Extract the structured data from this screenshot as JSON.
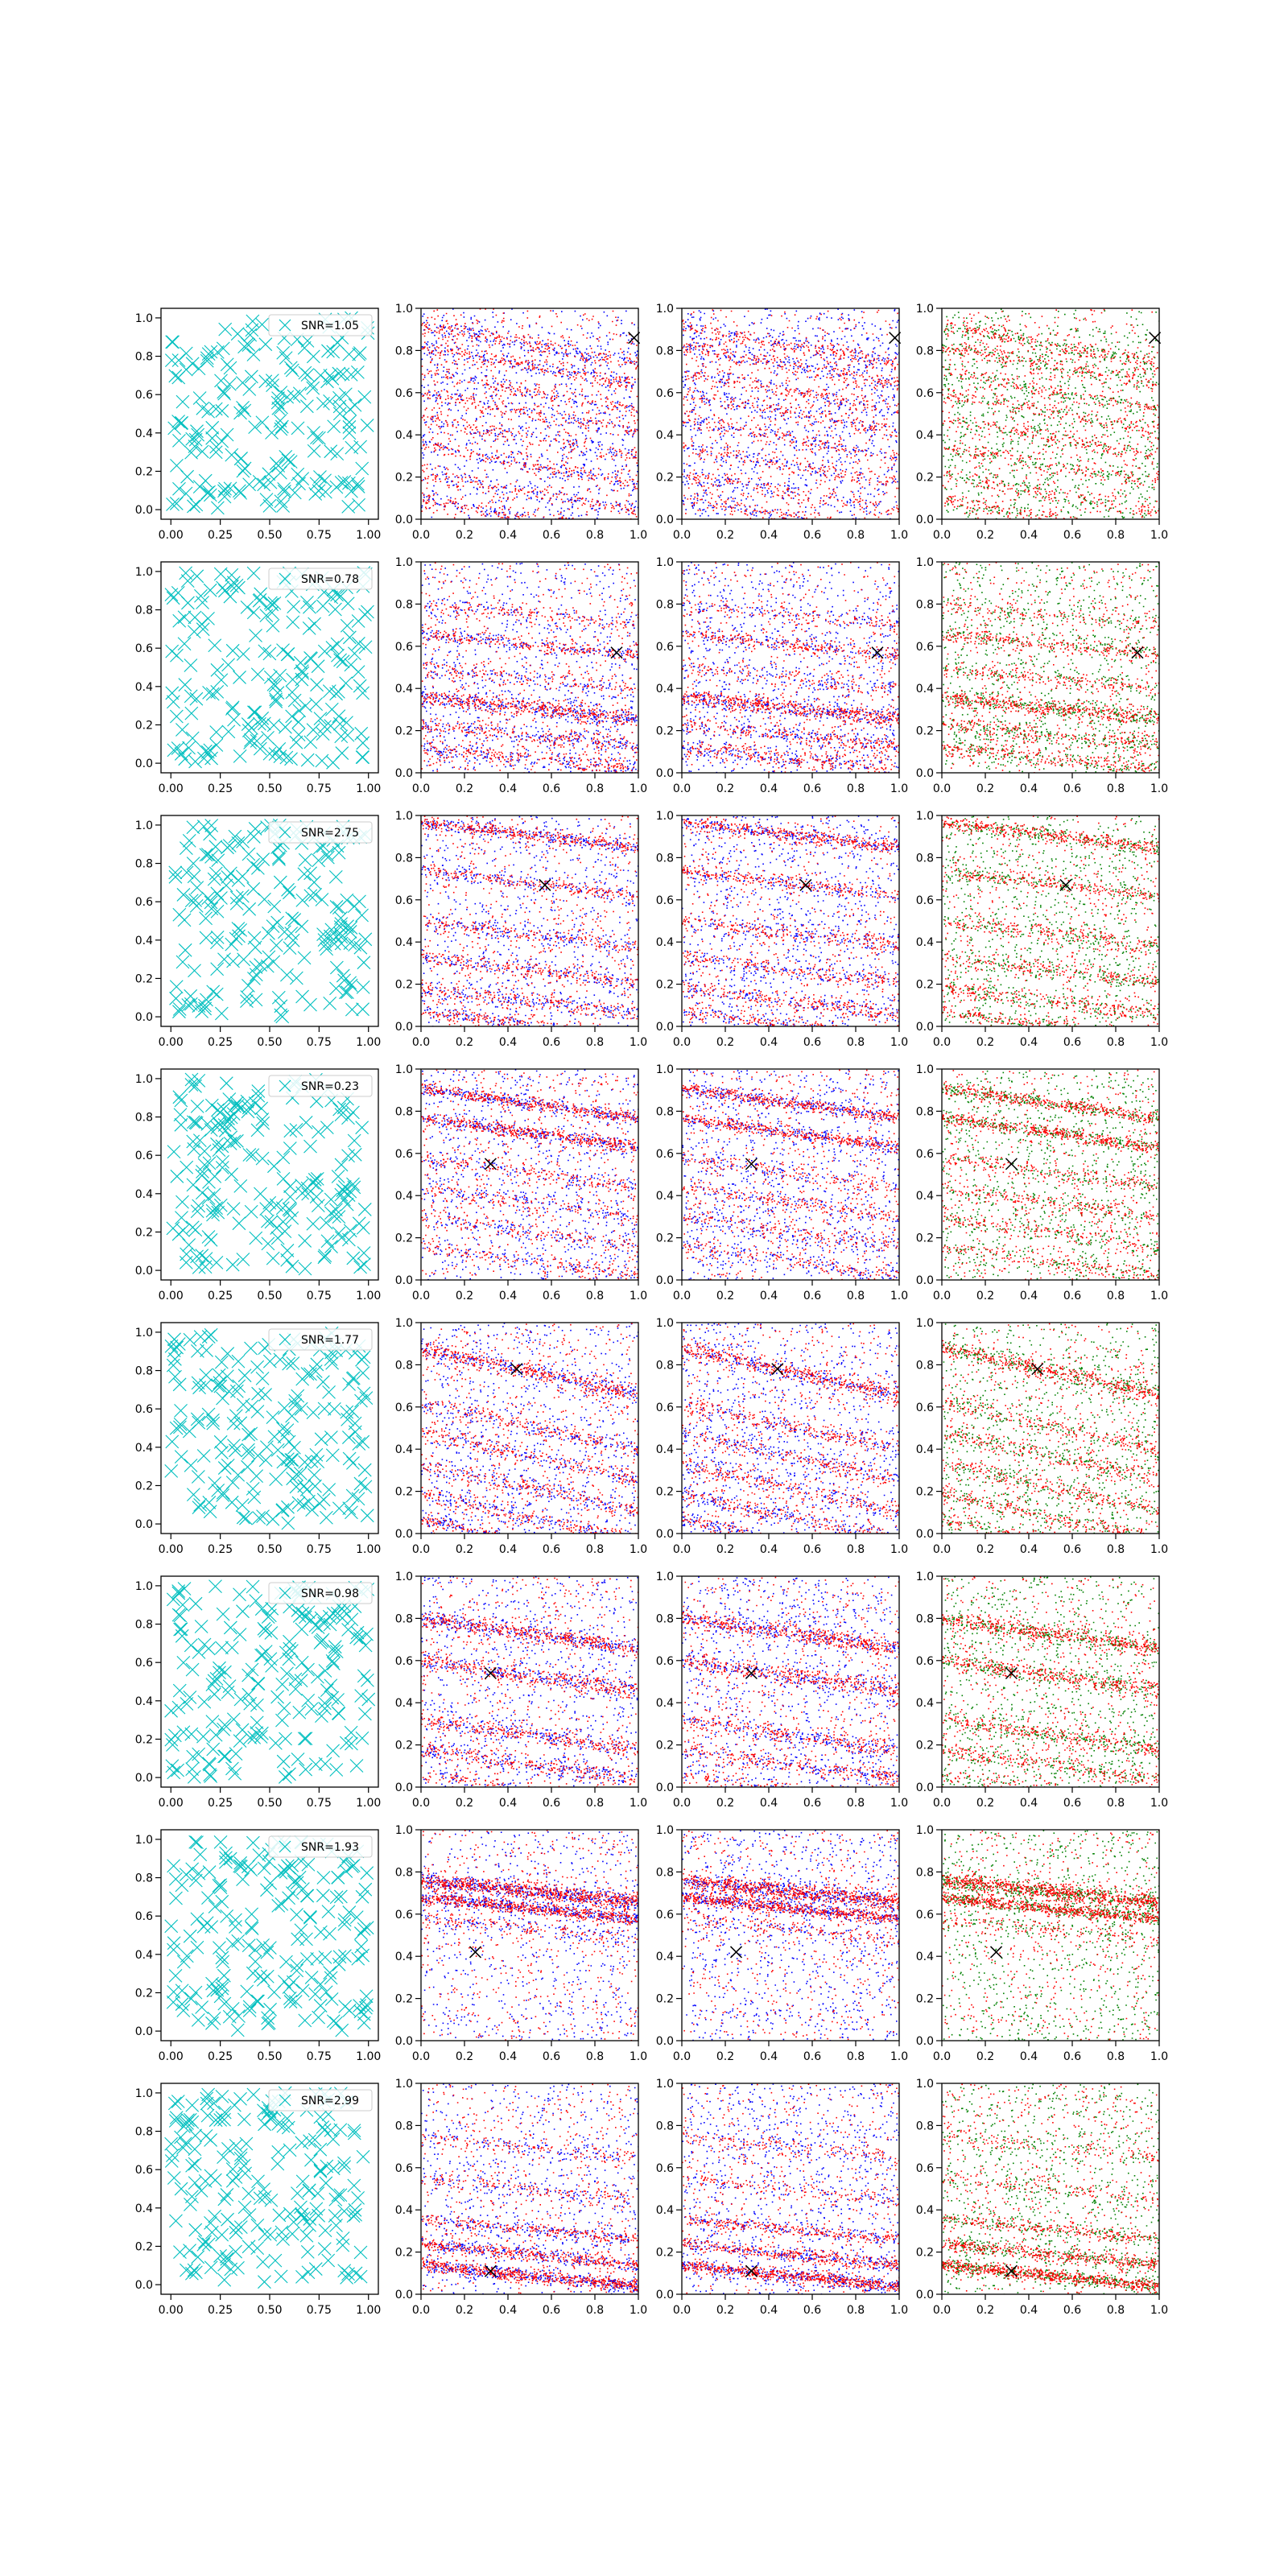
{
  "figure": {
    "rows": 8,
    "cols": 4
  },
  "colors": {
    "marker_cyan": "#00bfbf",
    "point_red": "#ff0000",
    "point_blue": "#0000ff",
    "point_green": "#008000",
    "truth_marker": "#000000",
    "axis": "#000000"
  },
  "chart_data": {
    "type": "scatter",
    "grid": false,
    "column_types": [
      "random-sample-crosses-with-legend",
      "red-blue-points",
      "red-blue-points",
      "red-green-points"
    ],
    "column1": {
      "xlim": [
        -0.05,
        1.05
      ],
      "ylim": [
        -0.05,
        1.05
      ],
      "xticks": [
        "0.00",
        "0.25",
        "0.50",
        "0.75",
        "1.00"
      ],
      "yticks": [
        "0.0",
        "0.2",
        "0.4",
        "0.6",
        "0.8",
        "1.0"
      ],
      "marker": "x",
      "legend_position": "upper right"
    },
    "columns234": {
      "xlim": [
        0,
        1
      ],
      "ylim": [
        0,
        1
      ],
      "xticks": [
        "0.0",
        "0.2",
        "0.4",
        "0.6",
        "0.8",
        "1.0"
      ],
      "yticks": [
        "0.0",
        "0.2",
        "0.4",
        "0.6",
        "0.8",
        "1.0"
      ]
    },
    "rows": [
      {
        "legend": "SNR=1.05",
        "truth": [
          0.98,
          0.86
        ],
        "band_slope": -0.18,
        "bands": [
          {
            "intercept": 0.92,
            "width": 0.02,
            "weight": 0.4
          },
          {
            "intercept": 0.82,
            "width": 0.02,
            "weight": 0.4
          },
          {
            "intercept": 0.7,
            "width": 0.02,
            "weight": 0.3
          },
          {
            "intercept": 0.6,
            "width": 0.02,
            "weight": 0.3
          },
          {
            "intercept": 0.48,
            "width": 0.02,
            "weight": 0.3
          },
          {
            "intercept": 0.35,
            "width": 0.02,
            "weight": 0.3
          },
          {
            "intercept": 0.22,
            "width": 0.02,
            "weight": 0.3
          },
          {
            "intercept": 0.1,
            "width": 0.02,
            "weight": 0.3
          }
        ]
      },
      {
        "legend": "SNR=0.78",
        "truth": [
          0.9,
          0.57
        ],
        "band_slope": -0.1,
        "bands": [
          {
            "intercept": 0.66,
            "width": 0.015,
            "weight": 0.5
          },
          {
            "intercept": 0.36,
            "width": 0.02,
            "weight": 1.0
          },
          {
            "intercept": 0.23,
            "width": 0.02,
            "weight": 0.5
          },
          {
            "intercept": 0.12,
            "width": 0.02,
            "weight": 0.5
          },
          {
            "intercept": 0.5,
            "width": 0.02,
            "weight": 0.3
          },
          {
            "intercept": 0.8,
            "width": 0.02,
            "weight": 0.3
          }
        ]
      },
      {
        "legend": "SNR=2.75",
        "truth": [
          0.57,
          0.67
        ],
        "band_slope": -0.12,
        "bands": [
          {
            "intercept": 0.97,
            "width": 0.015,
            "weight": 1.0
          },
          {
            "intercept": 0.74,
            "width": 0.015,
            "weight": 0.6
          },
          {
            "intercept": 0.5,
            "width": 0.02,
            "weight": 0.6
          },
          {
            "intercept": 0.33,
            "width": 0.02,
            "weight": 0.6
          },
          {
            "intercept": 0.18,
            "width": 0.02,
            "weight": 0.6
          },
          {
            "intercept": 0.07,
            "width": 0.015,
            "weight": 0.6
          }
        ]
      },
      {
        "legend": "SNR=0.23",
        "truth": [
          0.32,
          0.55
        ],
        "band_slope": -0.14,
        "bands": [
          {
            "intercept": 0.91,
            "width": 0.015,
            "weight": 1.0
          },
          {
            "intercept": 0.77,
            "width": 0.015,
            "weight": 1.0
          },
          {
            "intercept": 0.58,
            "width": 0.02,
            "weight": 0.4
          },
          {
            "intercept": 0.44,
            "width": 0.02,
            "weight": 0.4
          },
          {
            "intercept": 0.3,
            "width": 0.02,
            "weight": 0.4
          },
          {
            "intercept": 0.16,
            "width": 0.02,
            "weight": 0.4
          }
        ]
      },
      {
        "legend": "SNR=1.77",
        "truth": [
          0.44,
          0.78
        ],
        "band_slope": -0.22,
        "bands": [
          {
            "intercept": 0.88,
            "width": 0.02,
            "weight": 1.0
          },
          {
            "intercept": 0.62,
            "width": 0.02,
            "weight": 0.5
          },
          {
            "intercept": 0.48,
            "width": 0.02,
            "weight": 0.5
          },
          {
            "intercept": 0.33,
            "width": 0.02,
            "weight": 0.5
          },
          {
            "intercept": 0.19,
            "width": 0.02,
            "weight": 0.5
          },
          {
            "intercept": 0.07,
            "width": 0.015,
            "weight": 0.5
          }
        ]
      },
      {
        "legend": "SNR=0.98",
        "truth": [
          0.32,
          0.54
        ],
        "band_slope": -0.14,
        "bands": [
          {
            "intercept": 0.8,
            "width": 0.02,
            "weight": 1.0
          },
          {
            "intercept": 0.6,
            "width": 0.02,
            "weight": 0.8
          },
          {
            "intercept": 0.32,
            "width": 0.02,
            "weight": 0.6
          },
          {
            "intercept": 0.18,
            "width": 0.02,
            "weight": 0.5
          },
          {
            "intercept": 0.06,
            "width": 0.015,
            "weight": 0.3
          }
        ]
      },
      {
        "legend": "SNR=1.93",
        "truth": [
          0.25,
          0.42
        ],
        "band_slope": -0.1,
        "bands": [
          {
            "intercept": 0.76,
            "width": 0.02,
            "weight": 1.0
          },
          {
            "intercept": 0.68,
            "width": 0.015,
            "weight": 0.8
          },
          {
            "intercept": 0.58,
            "width": 0.02,
            "weight": 0.2
          }
        ]
      },
      {
        "legend": "SNR=2.99",
        "truth": [
          0.32,
          0.11
        ],
        "band_slope": -0.1,
        "bands": [
          {
            "intercept": 0.14,
            "width": 0.015,
            "weight": 1.0
          },
          {
            "intercept": 0.24,
            "width": 0.015,
            "weight": 0.6
          },
          {
            "intercept": 0.36,
            "width": 0.015,
            "weight": 0.4
          },
          {
            "intercept": 0.55,
            "width": 0.02,
            "weight": 0.2
          },
          {
            "intercept": 0.75,
            "width": 0.02,
            "weight": 0.2
          }
        ]
      }
    ]
  }
}
